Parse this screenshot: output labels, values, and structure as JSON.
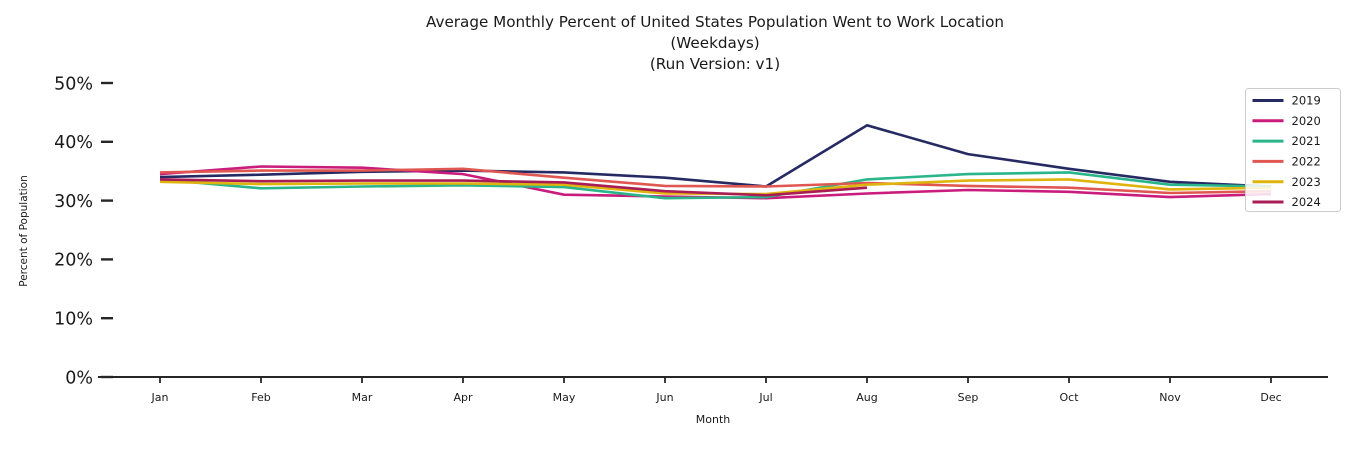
{
  "chart_data": {
    "type": "line",
    "title": "Average Monthly Percent of United States Population Went to Work Location (Weekdays) (Run Version: v1)",
    "title_lines": [
      "Average Monthly Percent of United States Population Went to Work Location",
      "(Weekdays)",
      "(Run Version: v1)"
    ],
    "xlabel": "Month",
    "ylabel": "Percent of Population",
    "x": [
      "Jan",
      "Feb",
      "Mar",
      "Apr",
      "May",
      "Jun",
      "Jul",
      "Aug",
      "Sep",
      "Oct",
      "Nov",
      "Dec"
    ],
    "yticks": [
      0,
      10,
      20,
      30,
      40,
      50
    ],
    "ytick_labels": [
      "0%",
      "10%",
      "20%",
      "30%",
      "40%",
      "50%"
    ],
    "ylim": [
      0,
      50
    ],
    "grid": false,
    "legend_position": "upper right",
    "axis_color": "#262626",
    "legend_border_color": "#cccccc",
    "series": [
      {
        "name": "2019",
        "color": "#262a63",
        "values": [
          34.0,
          34.4,
          34.9,
          35.1,
          34.8,
          33.9,
          32.4,
          42.8,
          37.9,
          35.4,
          33.2,
          32.4
        ]
      },
      {
        "name": "2020",
        "color": "#ca1c7d",
        "values": [
          34.5,
          35.8,
          35.6,
          34.5,
          31.0,
          30.7,
          30.4,
          31.2,
          31.8,
          31.5,
          30.6,
          31.1
        ]
      },
      {
        "name": "2021",
        "color": "#2bb58a",
        "values": [
          33.6,
          32.1,
          32.4,
          32.6,
          32.3,
          30.4,
          30.6,
          33.6,
          34.5,
          34.8,
          32.7,
          32.4
        ]
      },
      {
        "name": "2022",
        "color": "#e05752",
        "values": [
          34.8,
          35.1,
          35.1,
          35.4,
          33.9,
          32.5,
          32.4,
          33.0,
          32.5,
          32.2,
          31.3,
          31.6
        ]
      },
      {
        "name": "2023",
        "color": "#e0b40e",
        "values": [
          33.2,
          32.8,
          32.9,
          32.9,
          32.7,
          31.2,
          31.1,
          32.7,
          33.4,
          33.6,
          31.9,
          32.2
        ]
      },
      {
        "name": "2024",
        "color": "#a81d55",
        "values": [
          33.6,
          33.3,
          33.4,
          33.4,
          33.1,
          31.6,
          30.9,
          32.2
        ]
      }
    ]
  }
}
